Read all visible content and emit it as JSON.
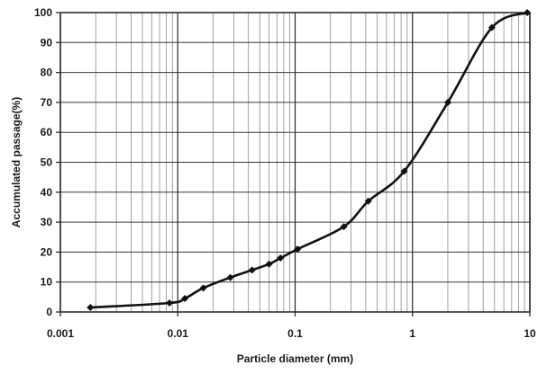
{
  "chart_data": {
    "type": "line",
    "title": "",
    "xlabel": "Particle diameter (mm)",
    "ylabel": "Accumulated passage(%)",
    "x_scale": "log",
    "xlim": [
      0.001,
      10
    ],
    "ylim": [
      0,
      100
    ],
    "x_ticks": [
      0.001,
      0.01,
      0.1,
      1,
      10
    ],
    "x_tick_labels": [
      "0.001",
      "0.01",
      "0.1",
      "1",
      "10"
    ],
    "y_ticks": [
      0,
      10,
      20,
      30,
      40,
      50,
      60,
      70,
      80,
      90,
      100
    ],
    "y_tick_labels": [
      "0",
      "10",
      "20",
      "30",
      "40",
      "50",
      "60",
      "70",
      "80",
      "90",
      "100"
    ],
    "grid": {
      "x_major": true,
      "x_minor": true,
      "y_major": true
    },
    "legend": "none",
    "series": [
      {
        "marker": "diamond",
        "color": "#111111",
        "x": [
          0.0018,
          0.0085,
          0.0115,
          0.0165,
          0.028,
          0.043,
          0.06,
          0.075,
          0.105,
          0.26,
          0.42,
          0.85,
          2.0,
          4.75,
          9.5
        ],
        "y": [
          1.5,
          3,
          4.5,
          8,
          11.5,
          14,
          16,
          18,
          21,
          28.5,
          37,
          47,
          70,
          95,
          100
        ]
      }
    ]
  }
}
